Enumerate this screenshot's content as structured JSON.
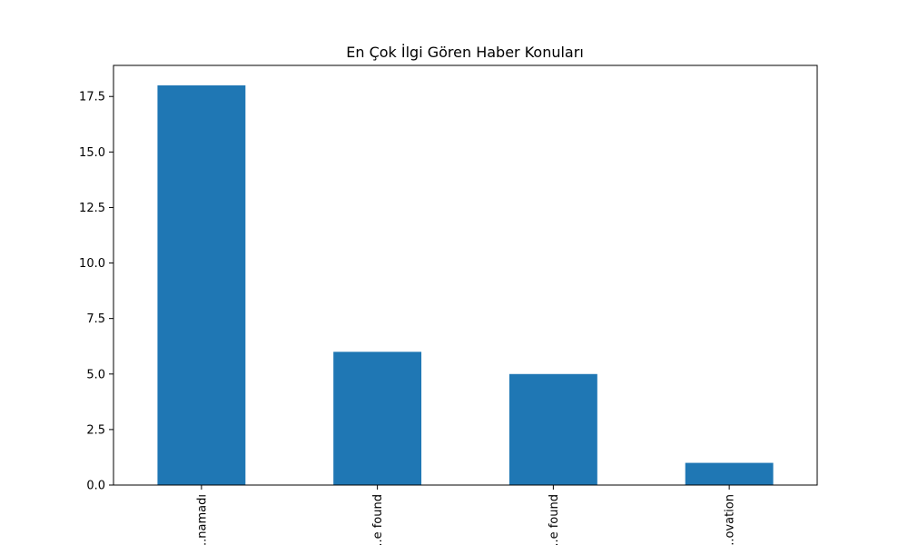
{
  "chart_data": {
    "type": "bar",
    "title": "En Çok İlgi Gören Haber Konuları",
    "xlabel": "",
    "ylabel": "",
    "categories": [
      "...namadı",
      "...e found",
      "...e found",
      "...ovation"
    ],
    "values": [
      18,
      6,
      5,
      1
    ],
    "ylim": [
      0,
      18.9
    ],
    "yticks": [
      {
        "value": 0,
        "label": "0.0"
      },
      {
        "value": 2.5,
        "label": "2.5"
      },
      {
        "value": 5,
        "label": "5.0"
      },
      {
        "value": 7.5,
        "label": "7.5"
      },
      {
        "value": 10,
        "label": "10.0"
      },
      {
        "value": 12.5,
        "label": "12.5"
      },
      {
        "value": 15,
        "label": "15.0"
      },
      {
        "value": 17.5,
        "label": "17.5"
      }
    ],
    "grid": false,
    "legend": "none",
    "bar_color": "#1f77b4",
    "x_tick_rotation": "vertical"
  }
}
